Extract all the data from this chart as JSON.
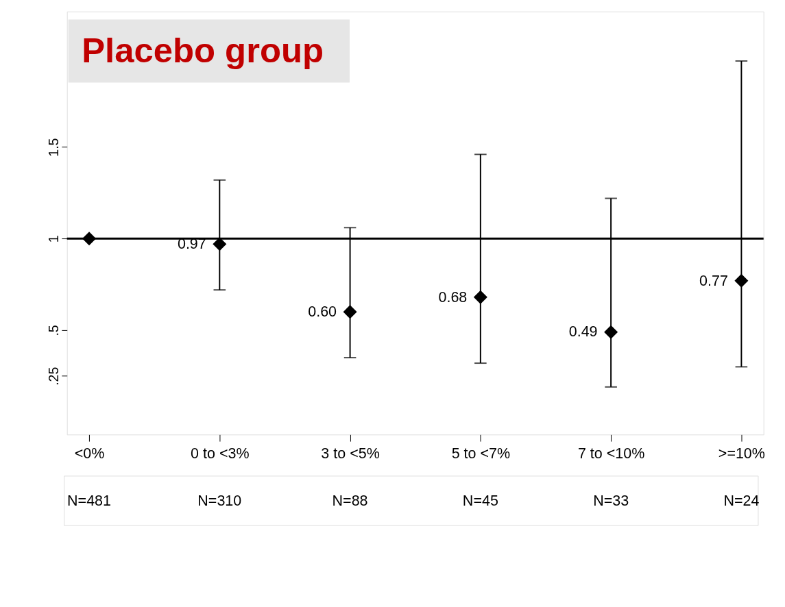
{
  "chart_data": {
    "type": "scatter",
    "title": "Placebo group",
    "categories": [
      "<0%",
      "0 to <3%",
      "3 to <5%",
      "5 to <7%",
      "7 to <10%",
      ">=10%"
    ],
    "series": [
      {
        "color": "#000000",
        "values": [
          1,
          0.97,
          0.6,
          0.68,
          0.49,
          0.77
        ],
        "errors": [
          null,
          [
            0.72,
            1.32
          ],
          [
            0.35,
            1.06
          ],
          [
            0.32,
            1.46
          ],
          [
            0.19,
            1.22
          ],
          [
            0.3,
            1.97
          ]
        ],
        "value_labels": [
          null,
          "0.97",
          "0.60",
          "0.68",
          "0.49",
          "0.77"
        ]
      }
    ],
    "ylim": [
      -0.07,
      2.24
    ],
    "yticks": [
      {
        "value": 0.25,
        "label": ".25"
      },
      {
        "value": 0.5,
        "label": ".5"
      },
      1,
      1.5
    ],
    "ref_lines": [
      {
        "axis": "y",
        "value": 1,
        "color": "#000000"
      }
    ],
    "annotations": [
      "N=481",
      "N=310",
      "N=88",
      "N=45",
      "N=33",
      "N=24"
    ],
    "marker": "diamond",
    "grid": false
  }
}
